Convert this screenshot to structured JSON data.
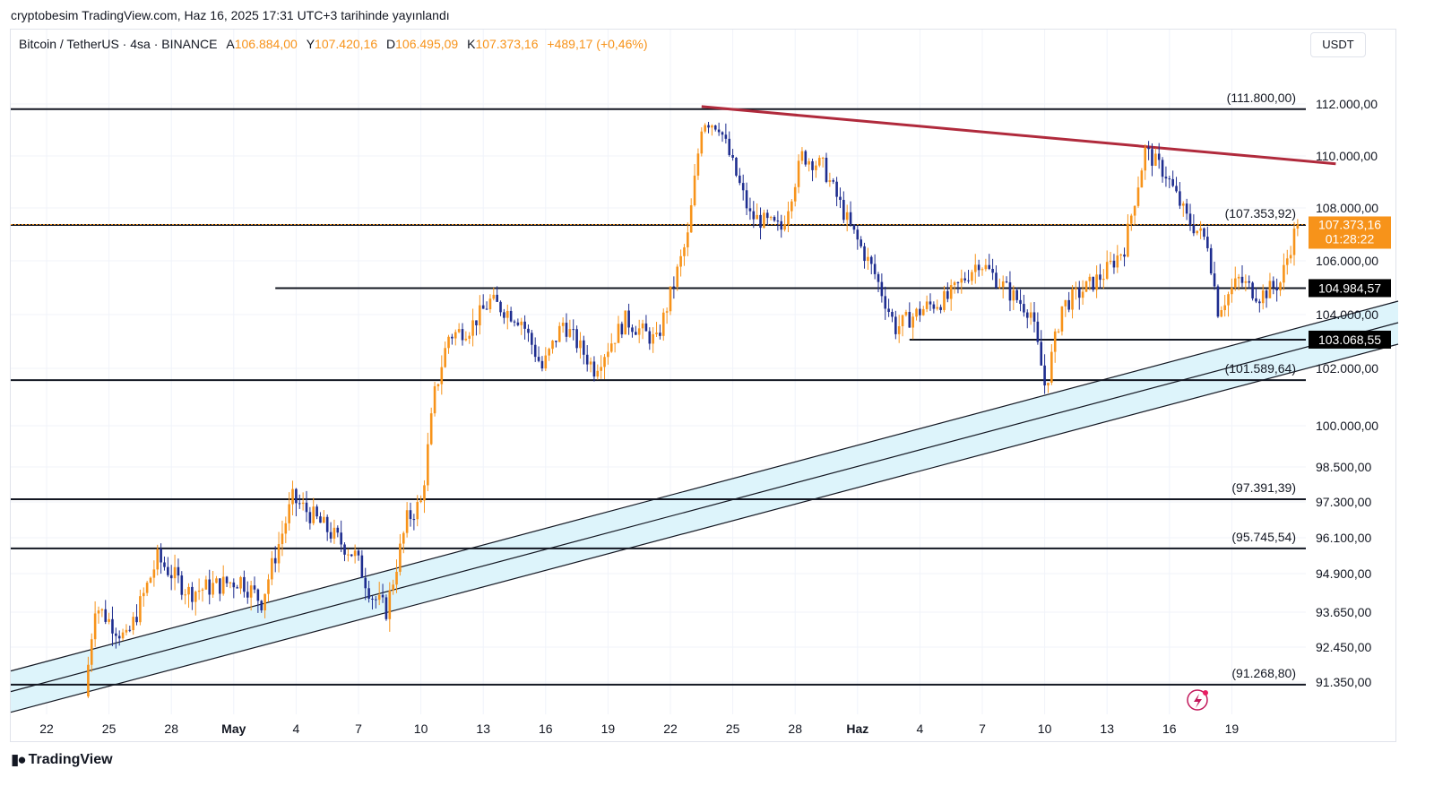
{
  "header": {
    "published": "cryptobesim TradingView.com, Haz 16, 2025 17:31 UTC+3 tarihinde yayınlandı"
  },
  "legend": {
    "symbol": "Bitcoin / TetherUS · 4sa · BINANCE",
    "open_label": "A",
    "open": "106.884,00",
    "high_label": "Y",
    "high": "107.420,16",
    "low_label": "D",
    "low": "106.495,09",
    "close_label": "K",
    "close": "107.373,16",
    "change": "+489,17 (+0,46%)"
  },
  "currency": "USDT",
  "footer": {
    "logo_text": "TradingView"
  },
  "colors": {
    "up": "#f7931a",
    "down": "#1e2d8f",
    "trendline": "#b02a3c",
    "channel_fill": "#ddf4fb",
    "price_tag": "#f7931a",
    "level_tag": "#000000"
  },
  "chart_data": {
    "type": "candlestick",
    "title": "Bitcoin / TetherUS",
    "timeframe": "4sa",
    "x_ticks": [
      "22",
      "25",
      "28",
      "May",
      "4",
      "7",
      "10",
      "13",
      "16",
      "19",
      "22",
      "25",
      "28",
      "Haz",
      "4",
      "7",
      "10",
      "13",
      "16",
      "19"
    ],
    "y_ticks": [
      "112.000,00",
      "110.000,00",
      "108.000,00",
      "106.000,00",
      "104.000,00",
      "102.000,00",
      "100.000,00",
      "98.500,00",
      "97.300,00",
      "96.100,00",
      "94.900,00",
      "93.650,00",
      "92.450,00",
      "91.350,00"
    ],
    "y_tick_values": [
      112000,
      110000,
      108000,
      106000,
      104000,
      102000,
      100000,
      98500,
      97300,
      96100,
      94900,
      93650,
      92450,
      91350
    ],
    "ylim": [
      90200,
      113200
    ],
    "horizontal_levels": [
      {
        "value": 111800.0,
        "label": "(111.800,00)",
        "from_day": 0
      },
      {
        "value": 107353.92,
        "label": "(107.353,92)",
        "from_day": 0
      },
      {
        "value": 104984.57,
        "label": "104.984,57",
        "from_day": 11,
        "tag": true
      },
      {
        "value": 103068.55,
        "label": "103.068,55",
        "from_day": 41.5,
        "tag": true
      },
      {
        "value": 101589.64,
        "label": "(101.589,64)",
        "from_day": 0
      },
      {
        "value": 97391.39,
        "label": "(97.391,39)",
        "from_day": 0
      },
      {
        "value": 95745.54,
        "label": "(95.745,54)",
        "from_day": 0
      },
      {
        "value": 91268.8,
        "label": "(91.268,80)",
        "from_day": 0
      }
    ],
    "last_price": {
      "value": 107373.16,
      "label": "107.373,16",
      "countdown": "01:28:22"
    },
    "resistance_trendline": {
      "from": {
        "day": 31.5,
        "value": 111900
      },
      "to": {
        "day": 62,
        "value": 109700
      }
    },
    "channel": {
      "start_day": 0,
      "end_day": 65,
      "upper": [
        92000,
        104500
      ],
      "middle": [
        91350,
        103700
      ],
      "lower": [
        90700,
        102900
      ]
    },
    "candles_anchor": "day 0 = Apr 21 2025 00:00, 6 candles per day",
    "path_keypoints": [
      {
        "day": 2.0,
        "value": 90900
      },
      {
        "day": 2.5,
        "value": 93900
      },
      {
        "day": 4.0,
        "value": 92700
      },
      {
        "day": 5.5,
        "value": 95400
      },
      {
        "day": 7.0,
        "value": 94300
      },
      {
        "day": 9.5,
        "value": 94700
      },
      {
        "day": 10.5,
        "value": 94000
      },
      {
        "day": 12.0,
        "value": 97400
      },
      {
        "day": 13.0,
        "value": 96800
      },
      {
        "day": 15.0,
        "value": 95500
      },
      {
        "day": 15.8,
        "value": 94200
      },
      {
        "day": 16.5,
        "value": 93700
      },
      {
        "day": 17.5,
        "value": 96700
      },
      {
        "day": 18.2,
        "value": 97300
      },
      {
        "day": 18.8,
        "value": 101000
      },
      {
        "day": 19.5,
        "value": 103200
      },
      {
        "day": 20.5,
        "value": 103500
      },
      {
        "day": 21.5,
        "value": 104500
      },
      {
        "day": 23.0,
        "value": 103800
      },
      {
        "day": 24.0,
        "value": 102000
      },
      {
        "day": 25.0,
        "value": 103700
      },
      {
        "day": 26.5,
        "value": 102000
      },
      {
        "day": 28.0,
        "value": 103800
      },
      {
        "day": 29.5,
        "value": 103000
      },
      {
        "day": 30.0,
        "value": 104300
      },
      {
        "day": 31.0,
        "value": 106900
      },
      {
        "day": 31.7,
        "value": 111400
      },
      {
        "day": 32.5,
        "value": 111200
      },
      {
        "day": 34.0,
        "value": 107700
      },
      {
        "day": 35.5,
        "value": 107200
      },
      {
        "day": 36.5,
        "value": 110000
      },
      {
        "day": 37.5,
        "value": 109600
      },
      {
        "day": 38.8,
        "value": 107300
      },
      {
        "day": 40.0,
        "value": 105500
      },
      {
        "day": 41.0,
        "value": 103500
      },
      {
        "day": 42.5,
        "value": 104300
      },
      {
        "day": 43.5,
        "value": 104600
      },
      {
        "day": 45.0,
        "value": 106000
      },
      {
        "day": 46.5,
        "value": 104800
      },
      {
        "day": 47.5,
        "value": 104100
      },
      {
        "day": 48.2,
        "value": 101300
      },
      {
        "day": 49.0,
        "value": 104300
      },
      {
        "day": 51.0,
        "value": 105500
      },
      {
        "day": 52.0,
        "value": 106500
      },
      {
        "day": 53.0,
        "value": 110200
      },
      {
        "day": 54.0,
        "value": 109300
      },
      {
        "day": 55.0,
        "value": 107600
      },
      {
        "day": 56.0,
        "value": 106700
      },
      {
        "day": 56.5,
        "value": 104200
      },
      {
        "day": 57.5,
        "value": 105300
      },
      {
        "day": 58.5,
        "value": 104700
      },
      {
        "day": 59.5,
        "value": 105200
      },
      {
        "day": 60.3,
        "value": 107373
      }
    ]
  }
}
